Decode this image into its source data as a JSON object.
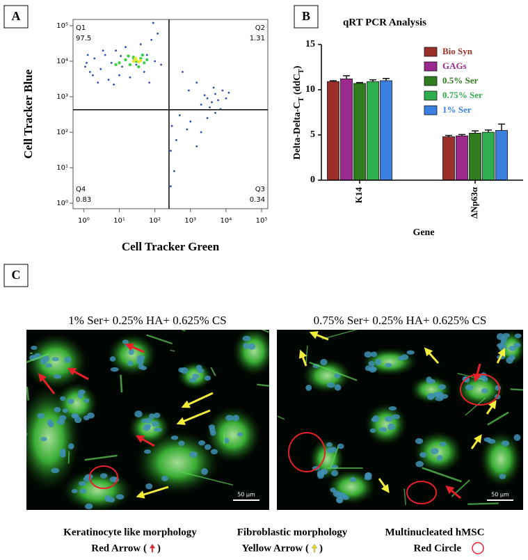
{
  "panels": {
    "a": "A",
    "b": "B",
    "c": "C"
  },
  "chart_data": [
    {
      "type": "scatter",
      "xlabel": "Cell Tracker Green",
      "ylabel": "Cell Tracker Blue",
      "xscale": "log",
      "yscale": "log",
      "xlim": [
        0.5,
        150000
      ],
      "ylim": [
        0.7,
        150000
      ],
      "xticks": [
        {
          "value": 1,
          "label": "10⁰"
        },
        {
          "value": 10,
          "label": "10¹"
        },
        {
          "value": 100,
          "label": "10²"
        },
        {
          "value": 1000,
          "label": "10³"
        },
        {
          "value": 10000,
          "label": "10⁴"
        },
        {
          "value": 100000,
          "label": "10⁵"
        }
      ],
      "yticks": [
        {
          "value": 1,
          "label": "10⁰"
        },
        {
          "value": 10,
          "label": "10¹"
        },
        {
          "value": 100,
          "label": "10²"
        },
        {
          "value": 1000,
          "label": "10³"
        },
        {
          "value": 10000,
          "label": "10⁴"
        },
        {
          "value": 100000,
          "label": "10⁵"
        }
      ],
      "gates": {
        "x": 250,
        "y": 430
      },
      "quadrants": [
        {
          "name": "Q1",
          "value": 97.5
        },
        {
          "name": "Q2",
          "value": 1.31
        },
        {
          "name": "Q3",
          "value": 0.34
        },
        {
          "name": "Q4",
          "value": 0.83
        }
      ],
      "series": [
        {
          "color": "#2a4db5",
          "x": [
            1.2,
            1.5,
            2,
            1.1,
            3,
            4,
            5,
            6,
            8,
            10,
            12,
            15,
            20,
            25,
            30,
            40,
            50,
            60,
            80,
            100,
            120,
            150,
            2.5,
            7,
            1.3,
            3.5,
            90,
            70,
            1.8,
            11,
            2000,
            3000,
            4000,
            5000,
            6000,
            8000,
            3500,
            2500,
            10000,
            12000,
            4500,
            7000,
            1500,
            600,
            900,
            300,
            400,
            500,
            1000,
            2000,
            280,
            350,
            3000,
            800,
            280,
            5000,
            1500
          ],
          "y": [
            9000,
            5000,
            12000,
            7000,
            6000,
            15000,
            3000,
            9000,
            20000,
            4000,
            7000,
            25000,
            3500,
            12000,
            8000,
            30000,
            5000,
            15000,
            40000,
            10000,
            60000,
            8000,
            2500,
            2200,
            15000,
            20000,
            120000,
            2500,
            4000,
            14000,
            600,
            900,
            700,
            1200,
            800,
            1500,
            500,
            1100,
            900,
            1300,
            1800,
            450,
            2500,
            5000,
            1500,
            150,
            60,
            300,
            200,
            100,
            30,
            8,
            250,
            120,
            3,
            350,
            40
          ]
        },
        {
          "color": "#3cd04a",
          "x": [
            10,
            15,
            20,
            25,
            30,
            40,
            50,
            35,
            18,
            60,
            45,
            8
          ],
          "y": [
            9000,
            11000,
            8000,
            13000,
            10000,
            12000,
            9000,
            7000,
            14000,
            11000,
            15000,
            8000
          ]
        },
        {
          "color": "#e6e62a",
          "x": [
            25,
            30,
            35,
            28,
            40
          ],
          "y": [
            10000,
            11000,
            9500,
            12000,
            10500
          ]
        }
      ]
    },
    {
      "type": "bar",
      "title": "qRT PCR Analysis",
      "xlabel": "Gene",
      "ylabel": [
        "Delta-Delta-C",
        "T",
        " (ddC",
        "T",
        ")"
      ],
      "categories": [
        "K14",
        "ΔNp63α"
      ],
      "ylim": [
        0,
        15
      ],
      "yticks": [
        0,
        5,
        10,
        15
      ],
      "legend": "upper right",
      "series": [
        {
          "name": "Bio Syn",
          "color": "#9b302b",
          "values": [
            10.9,
            4.8
          ],
          "errors": [
            0.1,
            0.15
          ]
        },
        {
          "name": "GAGs",
          "color": "#9b2a8f",
          "values": [
            11.2,
            4.9
          ],
          "errors": [
            0.35,
            0.15
          ]
        },
        {
          "name": "0.5% Ser",
          "color": "#2f7d1f",
          "values": [
            10.7,
            5.2
          ],
          "errors": [
            0.1,
            0.25
          ]
        },
        {
          "name": "0.75% Ser",
          "color": "#2fae4f",
          "values": [
            10.9,
            5.3
          ],
          "errors": [
            0.2,
            0.25
          ]
        },
        {
          "name": "1% Ser",
          "color": "#3b7fe0",
          "values": [
            11.0,
            5.5
          ],
          "errors": [
            0.25,
            0.7
          ]
        }
      ]
    }
  ],
  "micrographs": [
    {
      "title": "1% Ser+ 0.25% HA+ 0.625% CS",
      "scale_bar": "50 μm"
    },
    {
      "title": "0.75% Ser+ 0.25% HA+ 0.625% CS",
      "scale_bar": "50 μm"
    }
  ],
  "legend": [
    {
      "title": "Keratinocyte like morphology",
      "label": "Red Arrow (",
      "close": ")"
    },
    {
      "title": "Fibroblastic morphology",
      "label": "Yellow Arrow (",
      "close": ")"
    },
    {
      "title": "Multinucleated hMSC",
      "label": "Red Circle"
    }
  ]
}
